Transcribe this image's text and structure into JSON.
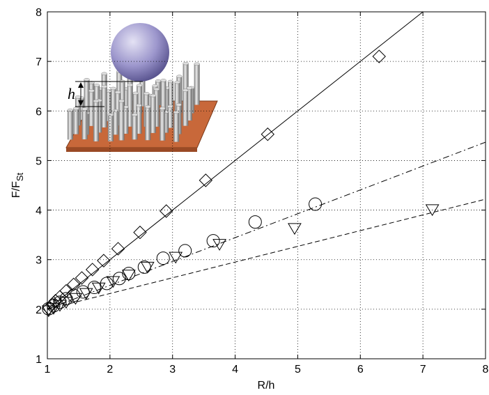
{
  "chart_data": {
    "type": "scatter",
    "xlabel": "R/h",
    "ylabel": "F/F",
    "ylabel_sub": "St",
    "xlim": [
      1,
      8
    ],
    "ylim": [
      1,
      8
    ],
    "xticks": [
      1,
      2,
      3,
      4,
      5,
      6,
      7,
      8
    ],
    "yticks": [
      1,
      2,
      3,
      4,
      5,
      6,
      7,
      8
    ],
    "grid": true,
    "series": [
      {
        "marker": "diamond",
        "color": "#000000",
        "x": [
          1.02,
          1.08,
          1.13,
          1.2,
          1.3,
          1.42,
          1.55,
          1.72,
          1.9,
          2.13,
          2.48,
          2.9,
          3.53,
          4.52,
          6.3
        ],
        "values": [
          2.02,
          2.1,
          2.17,
          2.25,
          2.37,
          2.5,
          2.63,
          2.8,
          2.98,
          3.22,
          3.55,
          3.98,
          4.6,
          5.53,
          7.1
        ]
      },
      {
        "marker": "circle",
        "color": "#000000",
        "x": [
          1.02,
          1.1,
          1.2,
          1.3,
          1.42,
          1.57,
          1.75,
          1.95,
          2.15,
          2.3,
          2.55,
          2.85,
          3.2,
          3.65,
          4.32,
          5.28
        ],
        "values": [
          2.01,
          2.07,
          2.14,
          2.21,
          2.28,
          2.35,
          2.44,
          2.52,
          2.62,
          2.72,
          2.85,
          3.03,
          3.18,
          3.38,
          3.76,
          4.12
        ]
      },
      {
        "marker": "triangle-down",
        "color": "#000000",
        "x": [
          1.02,
          1.1,
          1.2,
          1.3,
          1.45,
          1.62,
          1.82,
          2.05,
          2.3,
          2.6,
          3.05,
          3.75,
          4.95,
          7.15
        ],
        "values": [
          1.98,
          2.03,
          2.09,
          2.15,
          2.23,
          2.33,
          2.44,
          2.57,
          2.7,
          2.86,
          3.06,
          3.32,
          3.64,
          4.02
        ]
      }
    ],
    "lines": [
      {
        "style": "solid",
        "color": "#000000",
        "x": [
          1,
          7
        ],
        "values": [
          2,
          8
        ]
      },
      {
        "style": "dashdot",
        "color": "#000000",
        "x": [
          1,
          8
        ],
        "values": [
          2,
          5.37
        ]
      },
      {
        "style": "dashed",
        "color": "#000000",
        "x": [
          1,
          8
        ],
        "values": [
          2,
          4.22
        ]
      }
    ]
  },
  "inset": {
    "label": "h"
  }
}
